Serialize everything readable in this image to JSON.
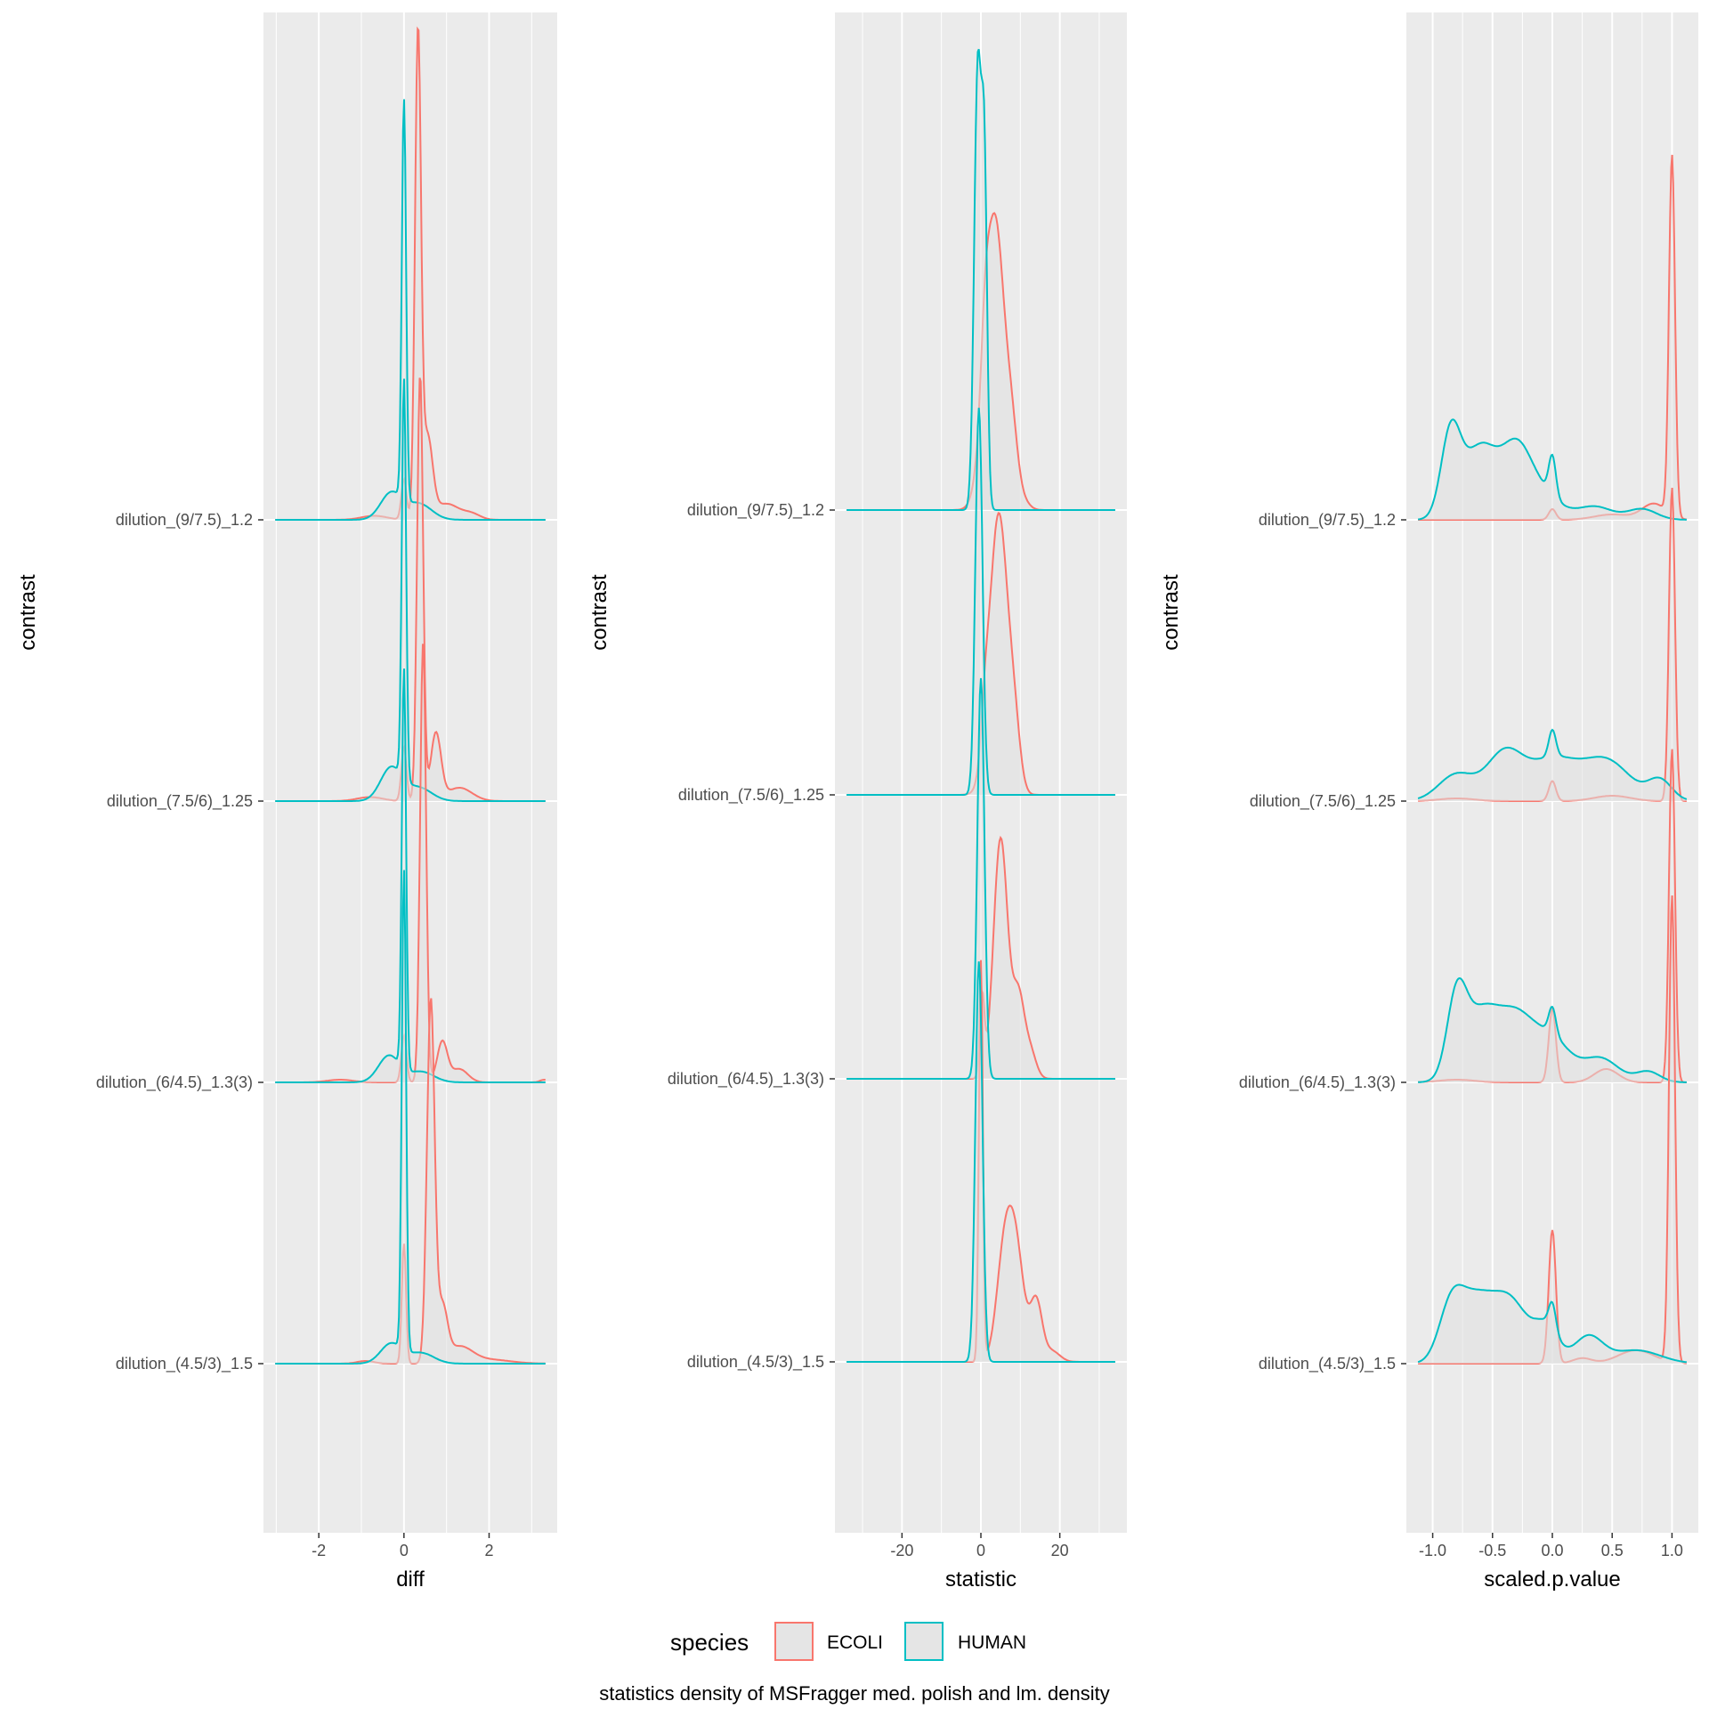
{
  "chart_data": [
    {
      "type": "area",
      "subtype": "ridgeline-density",
      "xlabel": "diff",
      "ylabel": "contrast",
      "xlim": [
        -3.3,
        3.6
      ],
      "xticks": [
        {
          "value": -2,
          "label": "-2"
        },
        {
          "value": 0,
          "label": "0"
        },
        {
          "value": 2,
          "label": "2"
        }
      ],
      "categories": [
        "dilution_(4.5/3)_1.5",
        "dilution_(6/4.5)_1.3(3)",
        "dilution_(7.5/6)_1.25",
        "dilution_(9/7.5)_1.2"
      ],
      "series": [
        {
          "name": "ECOLI",
          "color": "#F8766D",
          "ridges": [
            {
              "peaks": [
                [
                  -0.9,
                  0.02,
                  0.2
                ],
                [
                  0.0,
                  0.9,
                  0.05
                ],
                [
                  0.63,
                  2.7,
                  0.09
                ],
                [
                  0.9,
                  0.4,
                  0.12
                ],
                [
                  1.3,
                  0.12,
                  0.3
                ],
                [
                  2.0,
                  0.03,
                  0.5
                ]
              ]
            },
            {
              "peaks": [
                [
                  -1.5,
                  0.02,
                  0.3
                ],
                [
                  0.0,
                  0.35,
                  0.06
                ],
                [
                  0.45,
                  3.3,
                  0.07
                ],
                [
                  0.9,
                  0.3,
                  0.12
                ],
                [
                  1.3,
                  0.1,
                  0.2
                ],
                [
                  3.3,
                  0.02,
                  0.1
                ]
              ]
            },
            {
              "peaks": [
                [
                  -0.8,
                  0.03,
                  0.3
                ],
                [
                  0.0,
                  0.4,
                  0.06
                ],
                [
                  0.38,
                  3.2,
                  0.07
                ],
                [
                  0.75,
                  0.5,
                  0.12
                ],
                [
                  1.3,
                  0.1,
                  0.3
                ]
              ]
            },
            {
              "peaks": [
                [
                  -0.7,
                  0.03,
                  0.3
                ],
                [
                  0.0,
                  0.3,
                  0.06
                ],
                [
                  0.33,
                  3.6,
                  0.07
                ],
                [
                  0.55,
                  0.6,
                  0.12
                ],
                [
                  1.0,
                  0.12,
                  0.3
                ],
                [
                  1.6,
                  0.04,
                  0.2
                ]
              ]
            }
          ]
        },
        {
          "name": "HUMAN",
          "color": "#00BFC4",
          "ridges": [
            {
              "peaks": [
                [
                  -0.3,
                  0.15,
                  0.25
                ],
                [
                  0.0,
                  3.6,
                  0.05
                ],
                [
                  0.4,
                  0.08,
                  0.3
                ]
              ]
            },
            {
              "peaks": [
                [
                  -0.35,
                  0.2,
                  0.25
                ],
                [
                  0.0,
                  3.0,
                  0.05
                ],
                [
                  0.4,
                  0.08,
                  0.3
                ]
              ]
            },
            {
              "peaks": [
                [
                  -0.3,
                  0.25,
                  0.25
                ],
                [
                  0.0,
                  3.0,
                  0.05
                ],
                [
                  0.35,
                  0.1,
                  0.3
                ]
              ]
            },
            {
              "peaks": [
                [
                  -0.3,
                  0.2,
                  0.25
                ],
                [
                  0.0,
                  3.0,
                  0.05
                ],
                [
                  0.35,
                  0.12,
                  0.3
                ]
              ]
            }
          ]
        }
      ]
    },
    {
      "type": "area",
      "subtype": "ridgeline-density",
      "xlabel": "statistic",
      "ylabel": "contrast",
      "xlim": [
        -37,
        37
      ],
      "xticks": [
        {
          "value": -20,
          "label": "-20"
        },
        {
          "value": 0,
          "label": "0"
        },
        {
          "value": 20,
          "label": "20"
        }
      ],
      "categories": [
        "dilution_(4.5/3)_1.5",
        "dilution_(6/4.5)_1.3(3)",
        "dilution_(7.5/6)_1.25",
        "dilution_(9/7.5)_1.2"
      ],
      "series": [
        {
          "name": "ECOLI",
          "color": "#F8766D",
          "ridges": [
            {
              "peaks": [
                [
                  0.0,
                  3.0,
                  0.5
                ],
                [
                  6.0,
                  0.8,
                  2.0
                ],
                [
                  9.0,
                  0.75,
                  2.0
                ],
                [
                  14.0,
                  0.45,
                  1.5
                ],
                [
                  18.0,
                  0.08,
                  2.0
                ]
              ]
            },
            {
              "peaks": [
                [
                  0.3,
                  0.6,
                  0.6
                ],
                [
                  5.0,
                  1.8,
                  1.8
                ],
                [
                  9.5,
                  0.6,
                  1.5
                ],
                [
                  12.5,
                  0.2,
                  1.5
                ]
              ]
            },
            {
              "peaks": [
                [
                  1.0,
                  0.3,
                  1.0
                ],
                [
                  4.5,
                  2.1,
                  2.3
                ],
                [
                  8.5,
                  0.4,
                  1.5
                ]
              ]
            },
            {
              "peaks": [
                [
                  1.0,
                  0.4,
                  1.0
                ],
                [
                  3.5,
                  2.2,
                  2.5
                ],
                [
                  8.0,
                  0.4,
                  1.5
                ],
                [
                  11.0,
                  0.05,
                  1.5
                ]
              ]
            }
          ]
        },
        {
          "name": "HUMAN",
          "color": "#00BFC4",
          "ridges": [
            {
              "peaks": [
                [
                  -0.5,
                  3.0,
                  0.9
                ]
              ]
            },
            {
              "peaks": [
                [
                  0.0,
                  3.0,
                  0.9
                ]
              ]
            },
            {
              "peaks": [
                [
                  -0.5,
                  2.9,
                  0.9
                ]
              ]
            },
            {
              "peaks": [
                [
                  -0.8,
                  3.3,
                  0.9
                ],
                [
                  0.9,
                  2.4,
                  0.7
                ]
              ]
            }
          ]
        }
      ]
    },
    {
      "type": "area",
      "subtype": "ridgeline-density",
      "xlabel": "scaled.p.value",
      "ylabel": "contrast",
      "xlim": [
        -1.22,
        1.22
      ],
      "xticks": [
        {
          "value": -1.0,
          "label": "-1.0"
        },
        {
          "value": -0.5,
          "label": "-0.5"
        },
        {
          "value": 0.0,
          "label": "0.0"
        },
        {
          "value": 0.5,
          "label": "0.5"
        },
        {
          "value": 1.0,
          "label": "1.0"
        }
      ],
      "categories": [
        "dilution_(4.5/3)_1.5",
        "dilution_(6/4.5)_1.3(3)",
        "dilution_(7.5/6)_1.25",
        "dilution_(9/7.5)_1.2"
      ],
      "series": [
        {
          "name": "ECOLI",
          "color": "#F8766D",
          "ridges": [
            {
              "peaks": [
                [
                  0.0,
                  1.0,
                  0.03
                ],
                [
                  0.25,
                  0.04,
                  0.08
                ],
                [
                  0.7,
                  0.1,
                  0.15
                ],
                [
                  1.0,
                  3.5,
                  0.025
                ]
              ]
            },
            {
              "peaks": [
                [
                  -0.8,
                  0.02,
                  0.15
                ],
                [
                  0.0,
                  0.55,
                  0.03
                ],
                [
                  0.45,
                  0.1,
                  0.1
                ],
                [
                  1.0,
                  2.5,
                  0.025
                ]
              ]
            },
            {
              "peaks": [
                [
                  -0.8,
                  0.02,
                  0.15
                ],
                [
                  0.0,
                  0.15,
                  0.03
                ],
                [
                  0.5,
                  0.04,
                  0.15
                ],
                [
                  1.0,
                  2.35,
                  0.025
                ]
              ]
            },
            {
              "peaks": [
                [
                  0.0,
                  0.08,
                  0.03
                ],
                [
                  0.5,
                  0.04,
                  0.15
                ],
                [
                  0.85,
                  0.12,
                  0.1
                ],
                [
                  1.0,
                  2.7,
                  0.025
                ]
              ]
            }
          ]
        },
        {
          "name": "HUMAN",
          "color": "#00BFC4",
          "ridges": [
            {
              "peaks": [
                [
                  -0.85,
                  0.35,
                  0.1
                ],
                [
                  -0.65,
                  0.45,
                  0.15
                ],
                [
                  -0.35,
                  0.45,
                  0.15
                ],
                [
                  -0.05,
                  0.25,
                  0.1
                ],
                [
                  0.0,
                  0.2,
                  0.03
                ],
                [
                  0.3,
                  0.2,
                  0.12
                ],
                [
                  0.7,
                  0.1,
                  0.2
                ]
              ]
            },
            {
              "peaks": [
                [
                  -0.8,
                  0.55,
                  0.08
                ],
                [
                  -0.6,
                  0.5,
                  0.15
                ],
                [
                  -0.3,
                  0.45,
                  0.15
                ],
                [
                  0.0,
                  0.2,
                  0.03
                ],
                [
                  0.0,
                  0.3,
                  0.15
                ],
                [
                  0.4,
                  0.18,
                  0.15
                ],
                [
                  0.8,
                  0.08,
                  0.1
                ]
              ]
            },
            {
              "peaks": [
                [
                  -0.8,
                  0.2,
                  0.15
                ],
                [
                  -0.4,
                  0.35,
                  0.15
                ],
                [
                  0.0,
                  0.2,
                  0.03
                ],
                [
                  0.0,
                  0.3,
                  0.2
                ],
                [
                  0.45,
                  0.3,
                  0.2
                ],
                [
                  0.9,
                  0.15,
                  0.1
                ]
              ]
            },
            {
              "peaks": [
                [
                  -0.85,
                  0.6,
                  0.08
                ],
                [
                  -0.6,
                  0.55,
                  0.15
                ],
                [
                  -0.3,
                  0.45,
                  0.12
                ],
                [
                  0.0,
                  0.3,
                  0.03
                ],
                [
                  -0.1,
                  0.2,
                  0.15
                ],
                [
                  0.35,
                  0.1,
                  0.15
                ],
                [
                  0.75,
                  0.08,
                  0.12
                ]
              ]
            }
          ]
        }
      ]
    }
  ],
  "legend": {
    "title": "species",
    "items": [
      {
        "label": "ECOLI",
        "color": "#F8766D"
      },
      {
        "label": "HUMAN",
        "color": "#00BFC4"
      }
    ]
  },
  "caption": "statistics density of MSFragger med. polish and lm. density"
}
